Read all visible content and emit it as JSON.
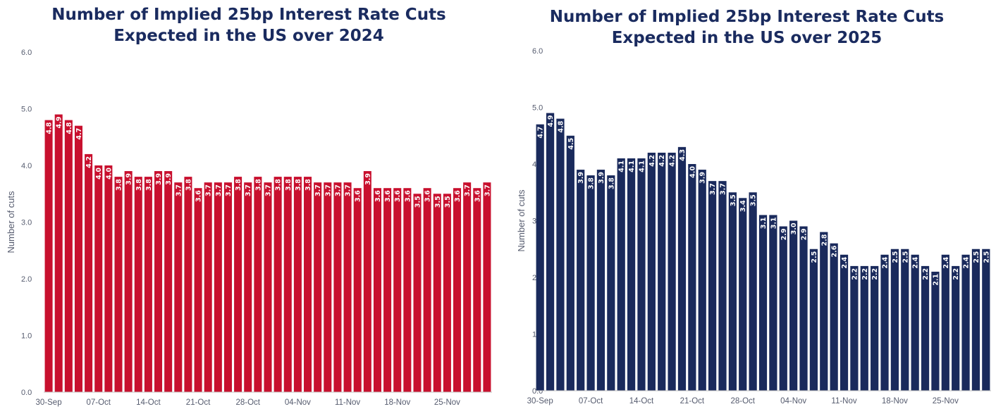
{
  "chart_data": [
    {
      "type": "bar",
      "title_lines": [
        "Number of Implied 25bp Interest Rate Cuts",
        "Expected in the US over 2024"
      ],
      "ylabel": "Number of cuts",
      "ylim": [
        0,
        6
      ],
      "yticks": [
        "0.0",
        "1.0",
        "2.0",
        "3.0",
        "4.0",
        "5.0",
        "6.0"
      ],
      "xtick_labels": [
        "30-Sep",
        "07-Oct",
        "14-Oct",
        "21-Oct",
        "28-Oct",
        "04-Nov",
        "11-Nov",
        "18-Nov",
        "25-Nov"
      ],
      "bar_color": "#c8102e",
      "values": [
        4.8,
        4.9,
        4.8,
        4.7,
        4.2,
        4.0,
        4.0,
        3.8,
        3.9,
        3.8,
        3.8,
        3.9,
        3.9,
        3.7,
        3.8,
        3.6,
        3.7,
        3.7,
        3.7,
        3.8,
        3.7,
        3.8,
        3.7,
        3.8,
        3.8,
        3.8,
        3.8,
        3.7,
        3.7,
        3.7,
        3.7,
        3.6,
        3.9,
        3.6,
        3.6,
        3.6,
        3.6,
        3.5,
        3.6,
        3.5,
        3.5,
        3.6,
        3.7,
        3.6,
        3.7
      ]
    },
    {
      "type": "bar",
      "title_lines": [
        "Number of Implied 25bp Interest Rate Cuts",
        "Expected in the US over 2025"
      ],
      "ylabel": "Number of cuts",
      "ylim": [
        0,
        6
      ],
      "yticks": [
        "0.0",
        "1.0",
        "2.0",
        "3.0",
        "4.0",
        "5.0",
        "6.0"
      ],
      "xtick_labels": [
        "30-Sep",
        "07-Oct",
        "14-Oct",
        "21-Oct",
        "28-Oct",
        "04-Nov",
        "11-Nov",
        "18-Nov",
        "25-Nov"
      ],
      "bar_color": "#1a2a5c",
      "values": [
        4.7,
        4.9,
        4.8,
        4.5,
        3.9,
        3.8,
        3.9,
        3.8,
        4.1,
        4.1,
        4.1,
        4.2,
        4.2,
        4.2,
        4.3,
        4.0,
        3.9,
        3.7,
        3.7,
        3.5,
        3.4,
        3.5,
        3.1,
        3.1,
        2.9,
        3.0,
        2.9,
        2.5,
        2.8,
        2.6,
        2.4,
        2.2,
        2.2,
        2.2,
        2.4,
        2.5,
        2.5,
        2.4,
        2.2,
        2.1,
        2.4,
        2.2,
        2.4,
        2.5,
        2.5
      ]
    }
  ]
}
